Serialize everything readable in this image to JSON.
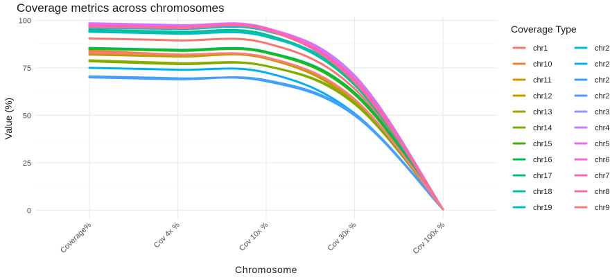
{
  "chart_data": {
    "type": "line",
    "title": "Coverage metrics across chromosomes",
    "xlabel": "Chromosome",
    "ylabel": "Value (%)",
    "categories": [
      "Coverage%",
      "Cov 4x %",
      "Cov 10x %",
      "Cov 30x %",
      "Cov 100x %"
    ],
    "ylim": [
      -5,
      102
    ],
    "yticks": [
      0,
      25,
      50,
      75,
      100
    ],
    "grid": true,
    "smooth": true,
    "legend": {
      "title": "Coverage Type",
      "position": "right",
      "columns": 2
    },
    "series": [
      {
        "name": "chr1",
        "color": "#F8766D",
        "values": [
          90.5,
          89.5,
          88.0,
          64.0,
          0.5
        ]
      },
      {
        "name": "chr10",
        "color": "#EA8331",
        "values": [
          84.0,
          82.0,
          80.5,
          58.0,
          0.5
        ]
      },
      {
        "name": "chr11",
        "color": "#D89000",
        "values": [
          83.0,
          81.5,
          80.0,
          57.0,
          0.5
        ]
      },
      {
        "name": "chr12",
        "color": "#C09B00",
        "values": [
          82.0,
          81.0,
          80.0,
          57.0,
          0.5
        ]
      },
      {
        "name": "chr13",
        "color": "#A3A500",
        "values": [
          79.0,
          77.5,
          76.0,
          56.0,
          0.5
        ]
      },
      {
        "name": "chr14",
        "color": "#7CAE00",
        "values": [
          78.5,
          77.0,
          76.0,
          56.5,
          0.5
        ]
      },
      {
        "name": "chr15",
        "color": "#39B600",
        "values": [
          85.0,
          84.0,
          83.0,
          61.0,
          0.5
        ]
      },
      {
        "name": "chr16",
        "color": "#00BB4E",
        "values": [
          85.5,
          84.5,
          83.5,
          62.0,
          0.5
        ]
      },
      {
        "name": "chr17",
        "color": "#00BF7D",
        "values": [
          95.0,
          94.0,
          92.5,
          67.0,
          0.5
        ]
      },
      {
        "name": "chr18",
        "color": "#00C1A3",
        "values": [
          94.5,
          93.5,
          92.0,
          66.0,
          0.5
        ]
      },
      {
        "name": "chr19",
        "color": "#00BFC4",
        "values": [
          94.0,
          93.0,
          91.5,
          68.0,
          0.5
        ]
      },
      {
        "name": "chr2",
        "color": "#00BAE0",
        "values": [
          96.0,
          95.5,
          94.5,
          70.5,
          0.5
        ]
      },
      {
        "name": "chr20",
        "color": "#00B0F6",
        "values": [
          75.0,
          74.0,
          72.5,
          51.0,
          0.5
        ]
      },
      {
        "name": "chr21",
        "color": "#35A2FF",
        "values": [
          70.5,
          69.5,
          68.0,
          50.0,
          0.5
        ]
      },
      {
        "name": "chr22",
        "color": "#4A9CFF",
        "values": [
          70.0,
          69.0,
          68.5,
          50.5,
          0.5
        ]
      },
      {
        "name": "chr3",
        "color": "#9590FF",
        "values": [
          98.0,
          97.0,
          95.5,
          70.0,
          0.5
        ]
      },
      {
        "name": "chr4",
        "color": "#C77CFF",
        "values": [
          98.5,
          97.5,
          96.0,
          71.0,
          0.5
        ]
      },
      {
        "name": "chr5",
        "color": "#E76BF3",
        "values": [
          98.0,
          97.0,
          96.0,
          69.5,
          0.5
        ]
      },
      {
        "name": "chr6",
        "color": "#FA62DB",
        "values": [
          97.5,
          96.5,
          95.5,
          69.0,
          0.5
        ]
      },
      {
        "name": "chr7",
        "color": "#FF62BC",
        "values": [
          97.0,
          96.5,
          95.0,
          68.5,
          0.5
        ]
      },
      {
        "name": "chr8",
        "color": "#FF6C91",
        "values": [
          96.5,
          96.0,
          95.0,
          67.5,
          0.5
        ]
      },
      {
        "name": "chr9",
        "color": "#FF7B7B",
        "values": [
          83.0,
          82.0,
          80.5,
          58.5,
          0.5
        ]
      }
    ]
  }
}
